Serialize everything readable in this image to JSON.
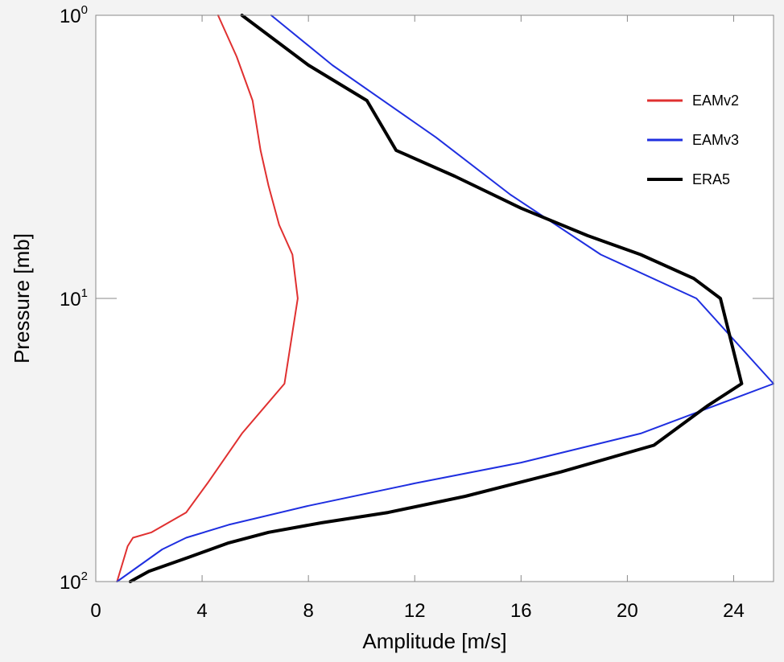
{
  "chart_data": {
    "type": "line",
    "title": "",
    "xlabel": "Amplitude [m/s]",
    "ylabel": "Pressure [mb]",
    "xlim": [
      0,
      25.5
    ],
    "ylim": [
      100,
      1
    ],
    "yscale": "log",
    "y_inverted": true,
    "grid": false,
    "legend_position": "top-right",
    "xticks": [
      0,
      4,
      8,
      12,
      16,
      20,
      24
    ],
    "xtick_labels": [
      "0",
      "4",
      "8",
      "12",
      "16",
      "20",
      "24"
    ],
    "yticks": [
      1,
      10,
      100
    ],
    "ytick_labels": [
      {
        "base": "10",
        "exp": "0"
      },
      {
        "base": "10",
        "exp": "1"
      },
      {
        "base": "10",
        "exp": "2"
      }
    ],
    "series": [
      {
        "name": "EAMv2",
        "color": "#e03030",
        "width": 2,
        "points": [
          [
            4.6,
            1.0
          ],
          [
            5.3,
            1.4
          ],
          [
            5.9,
            2.0
          ],
          [
            6.2,
            3.0
          ],
          [
            6.5,
            4.0
          ],
          [
            6.9,
            5.5
          ],
          [
            7.4,
            7.0
          ],
          [
            7.6,
            10.0
          ],
          [
            7.1,
            20.0
          ],
          [
            5.5,
            30.0
          ],
          [
            4.2,
            45.0
          ],
          [
            3.4,
            57.0
          ],
          [
            2.1,
            67.0
          ],
          [
            1.4,
            70.0
          ],
          [
            1.2,
            75.0
          ],
          [
            0.8,
            100.0
          ]
        ]
      },
      {
        "name": "EAMv3",
        "color": "#1f2fe0",
        "width": 2,
        "points": [
          [
            6.6,
            1.0
          ],
          [
            8.9,
            1.5
          ],
          [
            12.8,
            2.7
          ],
          [
            15.6,
            4.3
          ],
          [
            19.0,
            7.0
          ],
          [
            22.6,
            10.0
          ],
          [
            25.5,
            20.0
          ],
          [
            20.5,
            30.0
          ],
          [
            16.0,
            38.0
          ],
          [
            12.0,
            45.0
          ],
          [
            8.0,
            54.0
          ],
          [
            5.0,
            63.0
          ],
          [
            3.4,
            70.0
          ],
          [
            2.5,
            77.0
          ],
          [
            0.8,
            100.0
          ]
        ]
      },
      {
        "name": "ERA5",
        "color": "#000000",
        "width": 4,
        "points": [
          [
            5.5,
            1.0
          ],
          [
            8.0,
            1.5
          ],
          [
            10.2,
            2.0
          ],
          [
            11.3,
            3.0
          ],
          [
            13.5,
            3.7
          ],
          [
            16.0,
            4.8
          ],
          [
            18.5,
            6.0
          ],
          [
            20.5,
            7.0
          ],
          [
            22.5,
            8.5
          ],
          [
            23.5,
            10.0
          ],
          [
            24.3,
            20.0
          ],
          [
            23.0,
            24.0
          ],
          [
            21.0,
            33.0
          ],
          [
            17.5,
            41.0
          ],
          [
            13.9,
            50.0
          ],
          [
            11.0,
            57.0
          ],
          [
            8.5,
            62.0
          ],
          [
            6.5,
            67.0
          ],
          [
            5.0,
            73.0
          ],
          [
            3.5,
            82.0
          ],
          [
            2.0,
            92.0
          ],
          [
            1.3,
            100.0
          ]
        ]
      }
    ]
  }
}
